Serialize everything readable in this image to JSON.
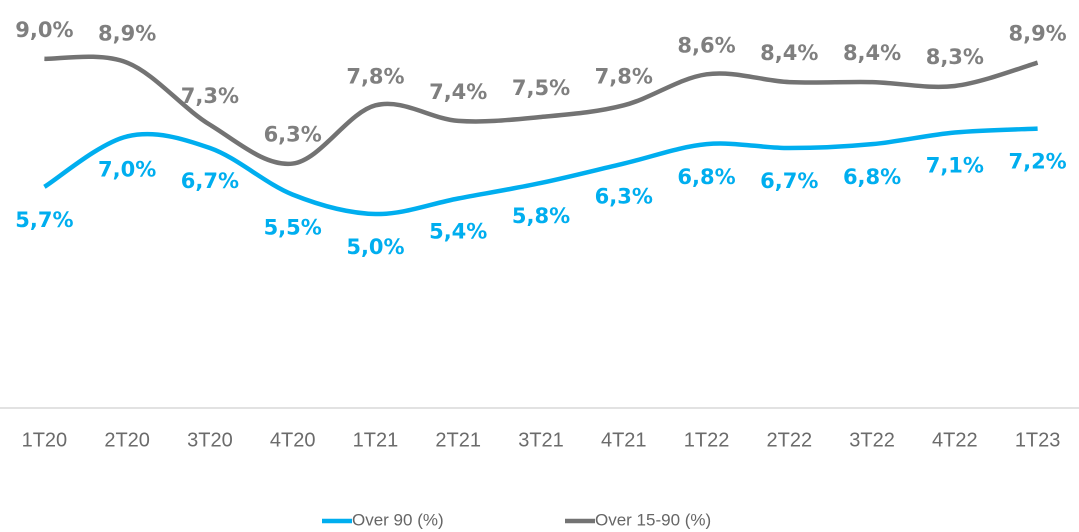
{
  "chart_data": {
    "type": "line",
    "categories": [
      "1T20",
      "2T20",
      "3T20",
      "4T20",
      "1T21",
      "2T21",
      "3T21",
      "4T21",
      "1T22",
      "2T22",
      "3T22",
      "4T22",
      "1T23"
    ],
    "series": [
      {
        "name": "Over 90 (%)",
        "color": "#00aeef",
        "values": [
          5.7,
          7.0,
          6.7,
          5.5,
          5.0,
          5.4,
          5.8,
          6.3,
          6.8,
          6.7,
          6.8,
          7.1,
          7.2
        ],
        "value_labels": [
          "5,7%",
          "7,0%",
          "6,7%",
          "5,5%",
          "5,0%",
          "5,4%",
          "5,8%",
          "6,3%",
          "6,8%",
          "6,7%",
          "6,8%",
          "7,1%",
          "7,2%"
        ]
      },
      {
        "name": "Over 15-90 (%)",
        "color": "#737373",
        "values": [
          9.0,
          8.9,
          7.3,
          6.3,
          7.8,
          7.4,
          7.5,
          7.8,
          8.6,
          8.4,
          8.4,
          8.3,
          8.9
        ],
        "value_labels": [
          "9,0%",
          "8,9%",
          "7,3%",
          "6,3%",
          "7,8%",
          "7,4%",
          "7,5%",
          "7,8%",
          "8,6%",
          "8,4%",
          "8,4%",
          "8,3%",
          "8,9%"
        ]
      }
    ],
    "ylim": [
      0,
      10
    ],
    "legend": "bottom"
  }
}
